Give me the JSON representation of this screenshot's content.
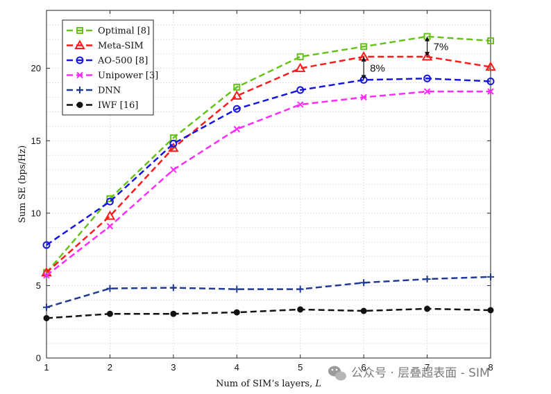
{
  "chart_data": {
    "type": "line",
    "xlabel": "Num of SIM’s layers, ",
    "xlabel_var": "L",
    "ylabel": "Sum SE (bps/Hz)",
    "x": [
      1,
      2,
      3,
      4,
      5,
      6,
      7,
      8
    ],
    "xlim": [
      1,
      8
    ],
    "ylim": [
      0,
      24
    ],
    "xticks": [
      "1",
      "2",
      "3",
      "4",
      "5",
      "6",
      "7",
      "8"
    ],
    "yticks": [
      "0",
      "5",
      "10",
      "15",
      "20"
    ],
    "grid": true,
    "legend_position": "top-left",
    "series": [
      {
        "name": "Optimal [8]",
        "color": "#66c21a",
        "marker": "square",
        "values": [
          5.9,
          11.0,
          15.2,
          18.7,
          20.8,
          21.5,
          22.2,
          21.9
        ]
      },
      {
        "name": "Meta-SIM",
        "color": "#ff1a1a",
        "marker": "triangle",
        "values": [
          5.9,
          9.8,
          14.5,
          18.1,
          20.0,
          20.8,
          20.8,
          20.1
        ]
      },
      {
        "name": "AO-500 [8]",
        "color": "#1515e0",
        "marker": "circle",
        "values": [
          7.8,
          10.8,
          14.8,
          17.2,
          18.5,
          19.2,
          19.3,
          19.1
        ]
      },
      {
        "name": "Unipower [3]",
        "color": "#ff2aff",
        "marker": "x",
        "values": [
          5.7,
          9.1,
          13.0,
          15.8,
          17.5,
          18.0,
          18.4,
          18.4
        ]
      },
      {
        "name": "DNN",
        "color": "#1f3a93",
        "marker": "plus",
        "values": [
          3.5,
          4.8,
          4.85,
          4.75,
          4.75,
          5.2,
          5.45,
          5.6
        ]
      },
      {
        "name": "IWF [16]",
        "color": "#111111",
        "marker": "dot",
        "values": [
          2.75,
          3.05,
          3.05,
          3.15,
          3.35,
          3.25,
          3.4,
          3.3
        ]
      }
    ],
    "annotations": [
      {
        "text": "8%",
        "x": 6,
        "y_from": 19.2,
        "y_to": 20.8
      },
      {
        "text": "7%",
        "x": 7,
        "y_from": 20.8,
        "y_to": 22.2
      }
    ]
  },
  "watermark": "公众号 · 层叠超表面 - SIM"
}
